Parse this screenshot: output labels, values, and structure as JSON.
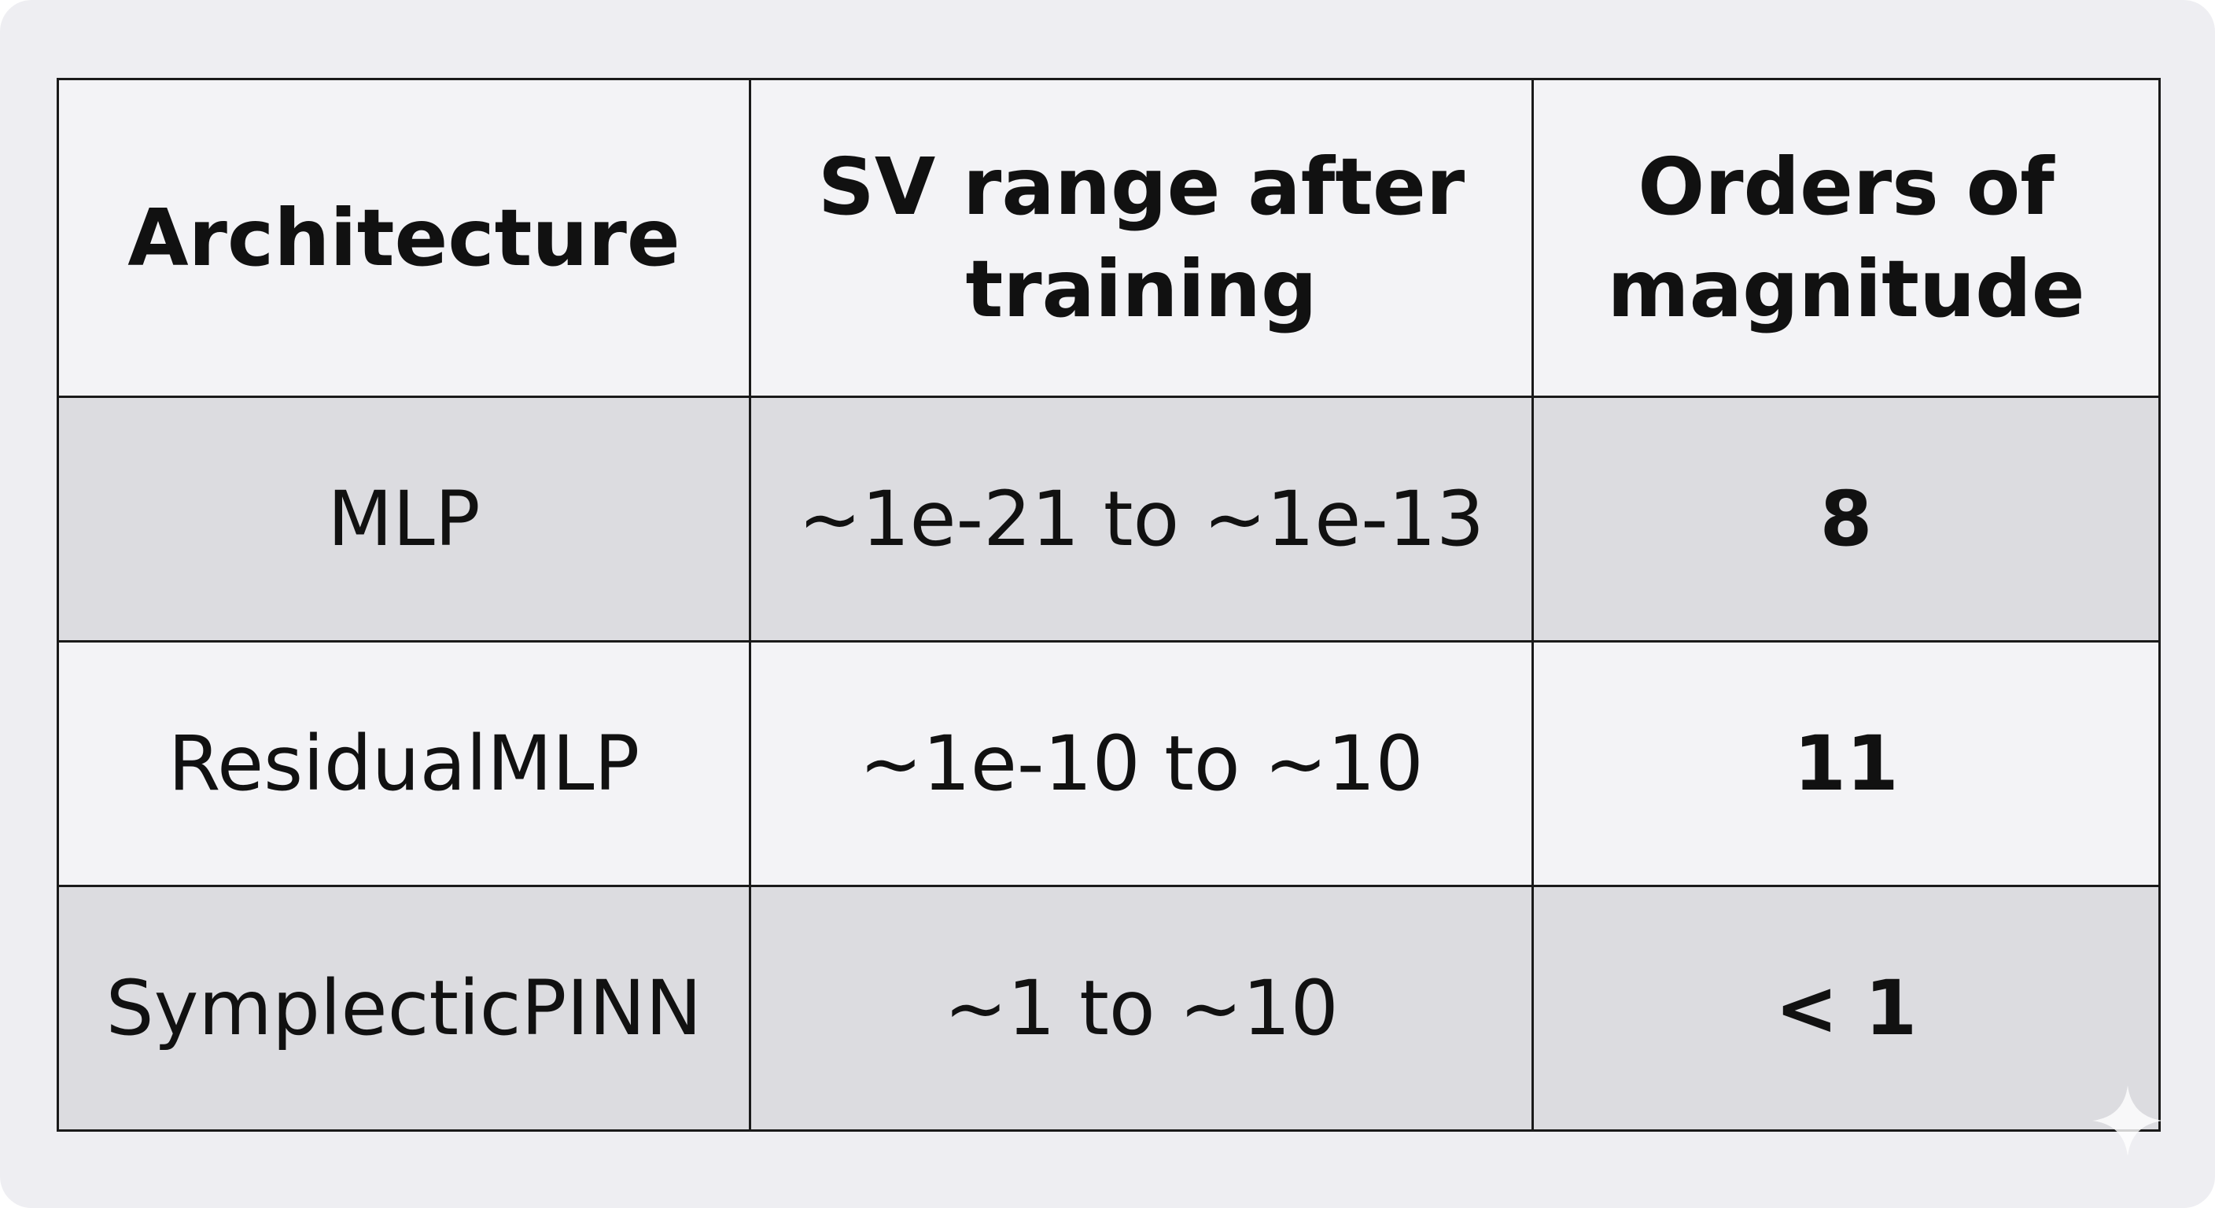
{
  "table": {
    "header": [
      "Architecture",
      "SV range after training",
      "Orders of magnitude"
    ],
    "rows": [
      [
        "MLP",
        "~1e-21 to ~1e-13",
        "8"
      ],
      [
        "ResidualMLP",
        "~1e-10 to ~10",
        "11"
      ],
      [
        "SymplecticPINN",
        "~1 to ~10",
        "< 1"
      ]
    ]
  }
}
